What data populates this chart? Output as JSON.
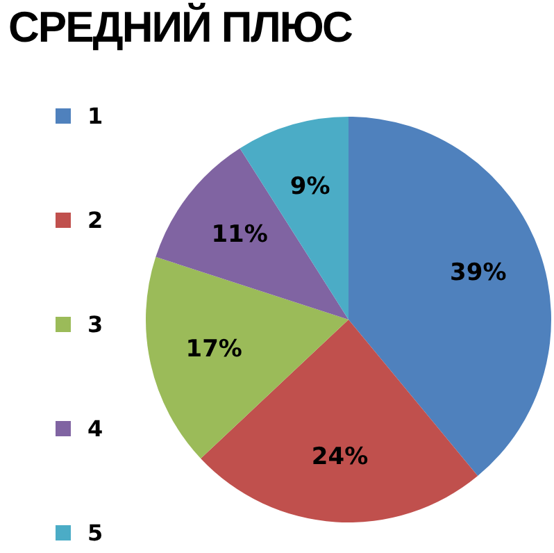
{
  "chart_data": {
    "type": "pie",
    "title": "СРЕДНИЙ ПЛЮС",
    "categories": [
      "1",
      "2",
      "3",
      "4",
      "5"
    ],
    "values": [
      39,
      24,
      17,
      11,
      9
    ],
    "colors": [
      "#4f81bd",
      "#c0504d",
      "#9bbb59",
      "#8064a2",
      "#4bacc6"
    ],
    "value_labels": [
      "39%",
      "24%",
      "17%",
      "11%",
      "9%"
    ],
    "legend": "left"
  }
}
